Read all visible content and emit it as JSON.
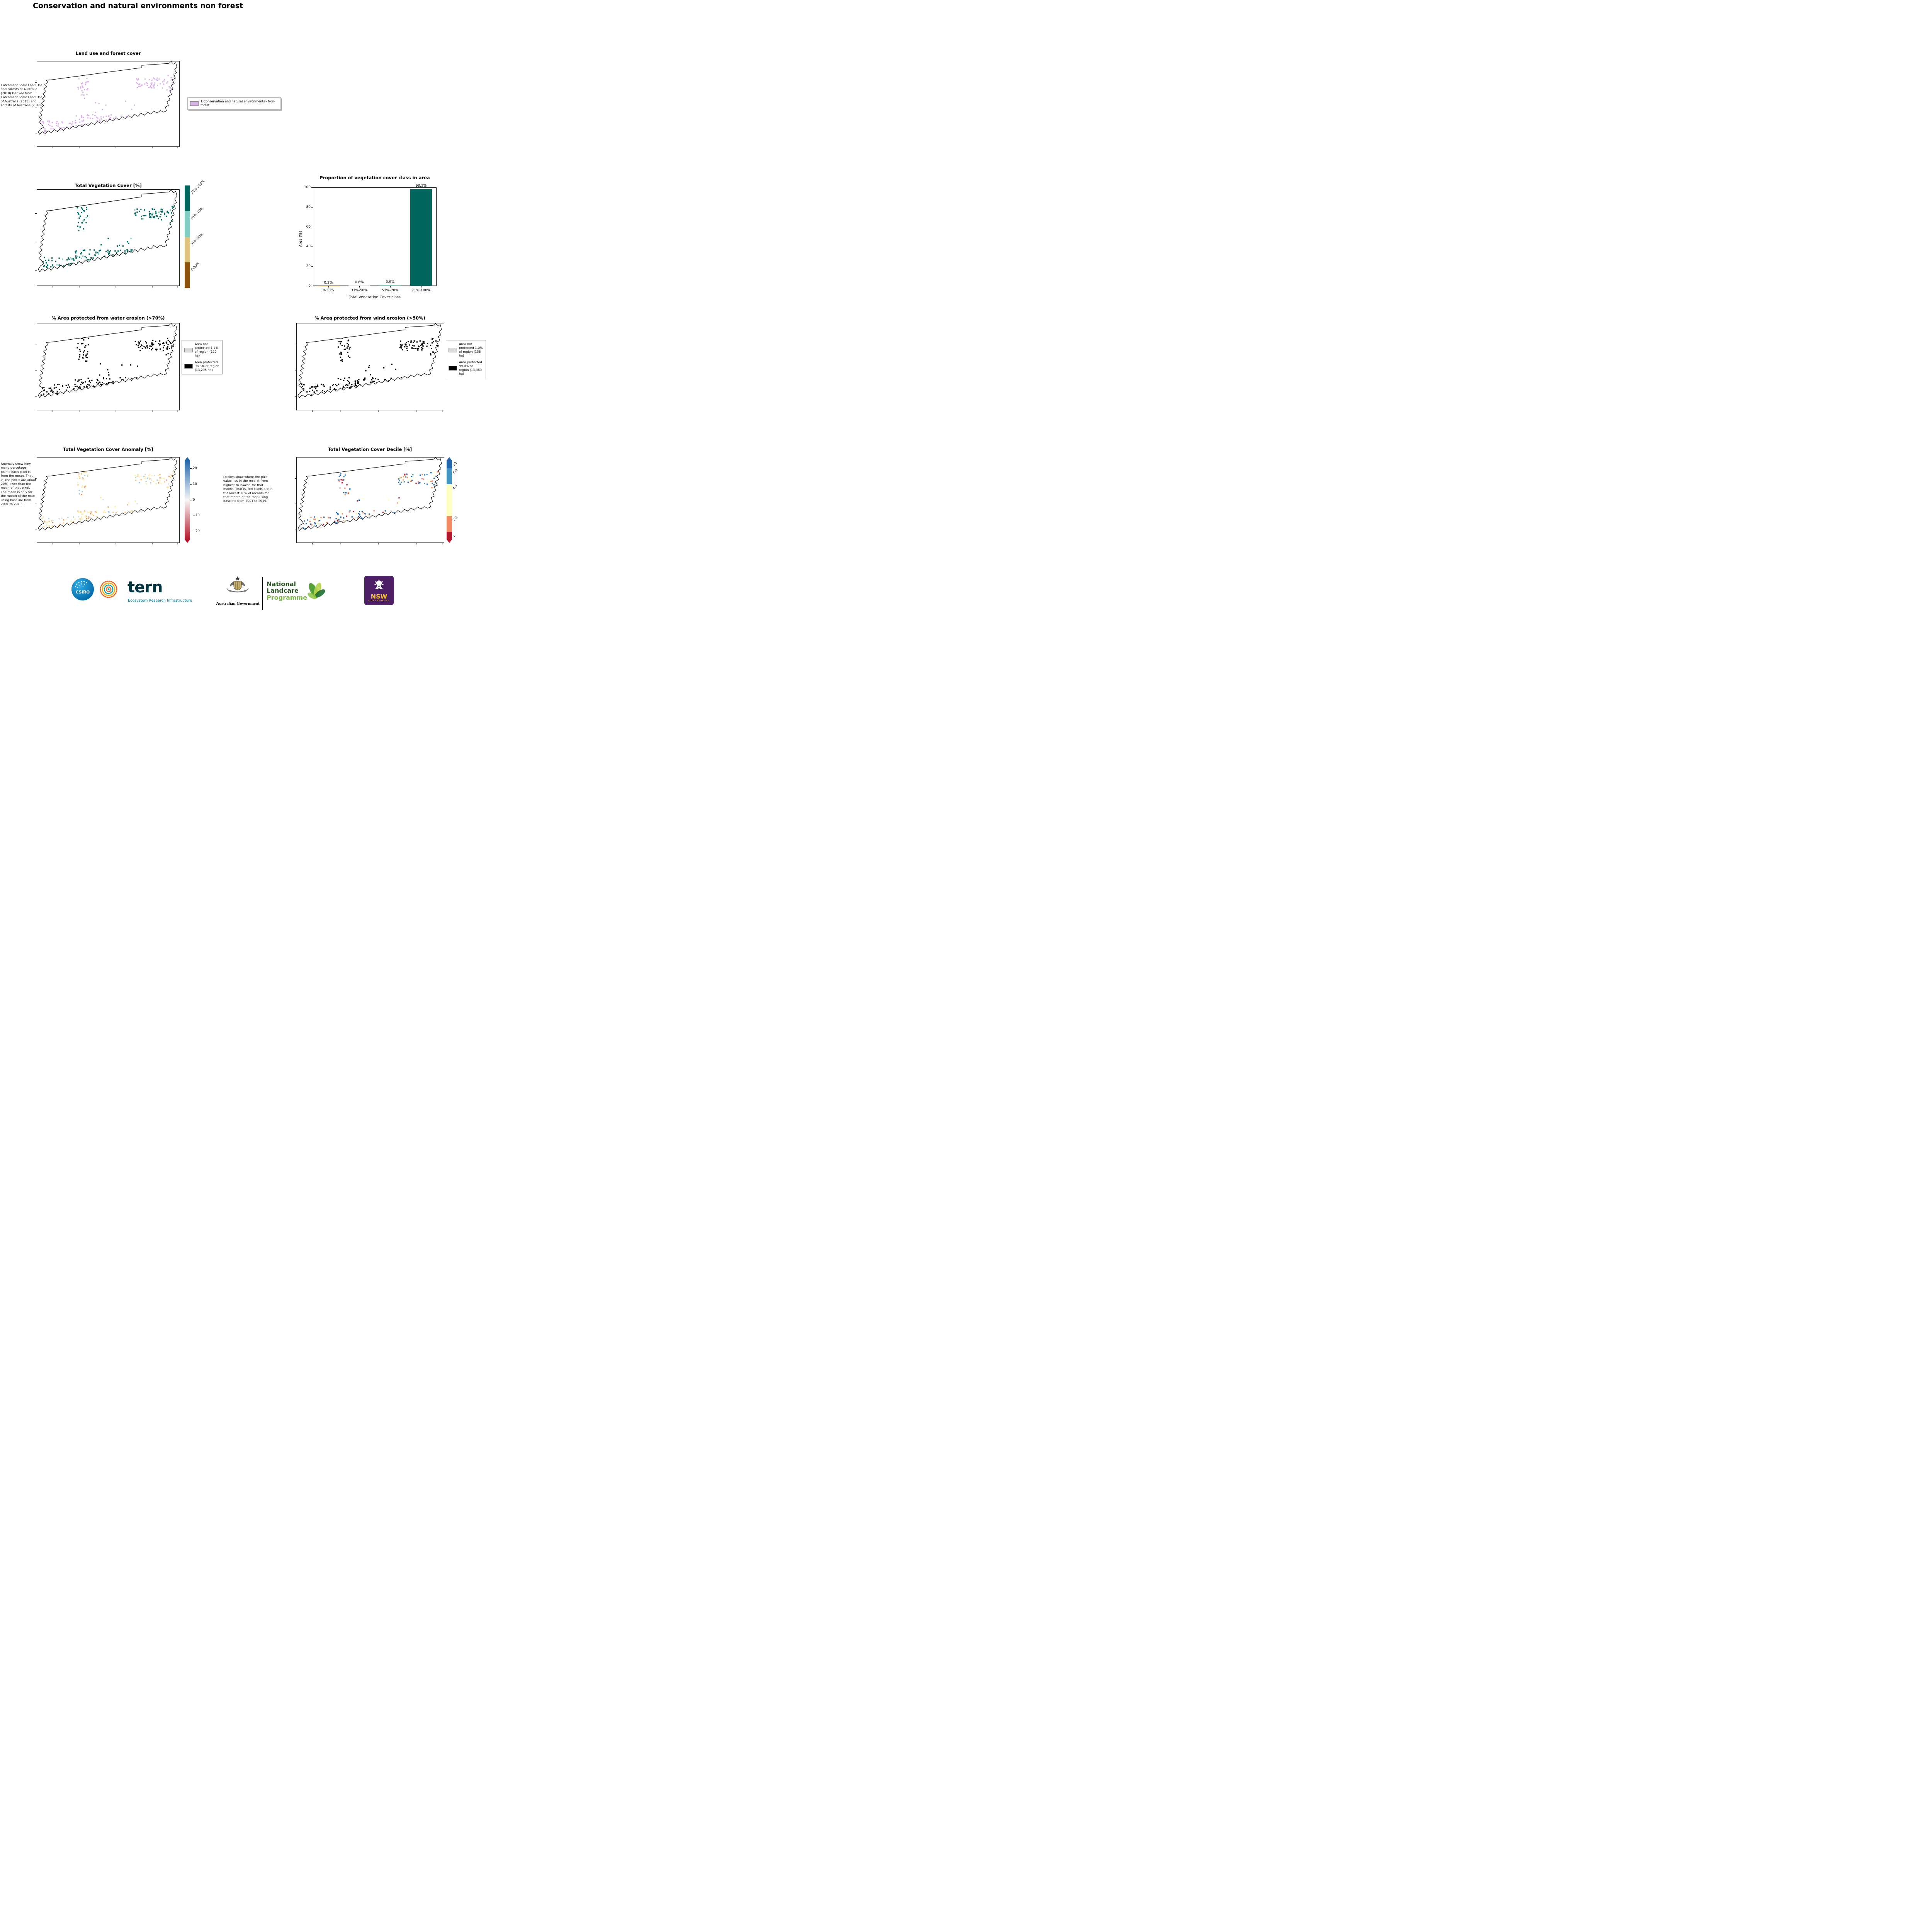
{
  "page": {
    "title": "Conservation and natural environments non forest"
  },
  "land_use": {
    "title": "Land use and forest cover",
    "side_note": "Catchment Scale Land Use and Forests of Australia (2018) Derived from Catchment Scale Land Use of Australia (2018) and Forests of Australia (2018)",
    "legend": [
      {
        "label": "1 Conservation and natural environments - Non-forest",
        "color": "#d9b3e6"
      }
    ]
  },
  "tvc": {
    "title": "Total Vegetation Cover [%]",
    "classes": [
      {
        "label": "71%-100%",
        "color": "#01665e"
      },
      {
        "label": "51%-70%",
        "color": "#80cdc1"
      },
      {
        "label": "31%-50%",
        "color": "#dfc27d"
      },
      {
        "label": "0-30%",
        "color": "#8c510a"
      }
    ]
  },
  "chart_data": {
    "type": "bar",
    "title": "Proportion of vegetation cover class in area",
    "categories": [
      "0-30%",
      "31%-50%",
      "51%-70%",
      "71%-100%"
    ],
    "values": [
      0.2,
      0.6,
      0.9,
      98.3
    ],
    "value_labels": [
      "0.2%",
      "0.6%",
      "0.9%",
      "98.3%"
    ],
    "bar_colors": [
      "#8c510a",
      "#dfc27d",
      "#80cdc1",
      "#01665e"
    ],
    "xlabel": "Total Vegetation Cover class",
    "ylabel": "Area (%)",
    "ylim": [
      0,
      100
    ],
    "yticks": [
      0,
      20,
      40,
      60,
      80,
      100
    ],
    "grid": false,
    "legend_position": "none"
  },
  "water_erosion": {
    "title": "% Area protected from water erosion (>70%)",
    "legend": [
      {
        "label": "Area not protected 1.7% of region (229 ha)",
        "color": "#d9d9d9"
      },
      {
        "label": "Area protected 98.3% of region (13,295 ha)",
        "color": "#000000"
      }
    ]
  },
  "wind_erosion": {
    "title": "% Area protected from wind erosion (>50%)",
    "legend": [
      {
        "label": "Area not protected 1.0% of region (135 ha)",
        "color": "#d9d9d9"
      },
      {
        "label": "Area protected 99.0% of region (13,389 ha)",
        "color": "#000000"
      }
    ]
  },
  "anomaly": {
    "title": "Total Vegetation Cover Anomaly [%]",
    "side_note": "Anomaly show how many percetage points each pixel is from the mean. That is, red pixels are about 20% lower than the mean of that pixel. The mean is only for the month of the map using baseline from 2001 to 2019.",
    "colorbar": {
      "tick_labels": [
        "20",
        "10",
        "0",
        "−10",
        "−20"
      ],
      "top_color": "#2166ac",
      "mid_color": "#f7f7f7",
      "bottom_color": "#b2182b"
    }
  },
  "decile": {
    "title": "Total Vegetation Cover Decile [%]",
    "note": "Deciles show where the pixel value lies in the record, from highest to lowest, for that month. That is, red pixels are in the lowest 10% of records for that month of the map using baseline from 2001 to 2019.",
    "classes": [
      {
        "label": "10",
        "color": "#2166ac"
      },
      {
        "label": "8-9",
        "color": "#4393c3"
      },
      {
        "label": "4-7",
        "color": "#ffffbf"
      },
      {
        "label": "2-3",
        "color": "#ef8a62"
      },
      {
        "label": "1",
        "color": "#b2182b"
      }
    ]
  },
  "footer": {
    "csiro_label": "CSIRO",
    "tern_label": "tern",
    "tern_subtitle": "Ecosystem Research Infrastructure",
    "aus_gov_label": "Australian Government",
    "landcare_line1": "National",
    "landcare_line2": "Landcare",
    "landcare_line3": "Programme",
    "nsw_label": "NSW",
    "nsw_subtitle": "GOVERNMENT"
  }
}
